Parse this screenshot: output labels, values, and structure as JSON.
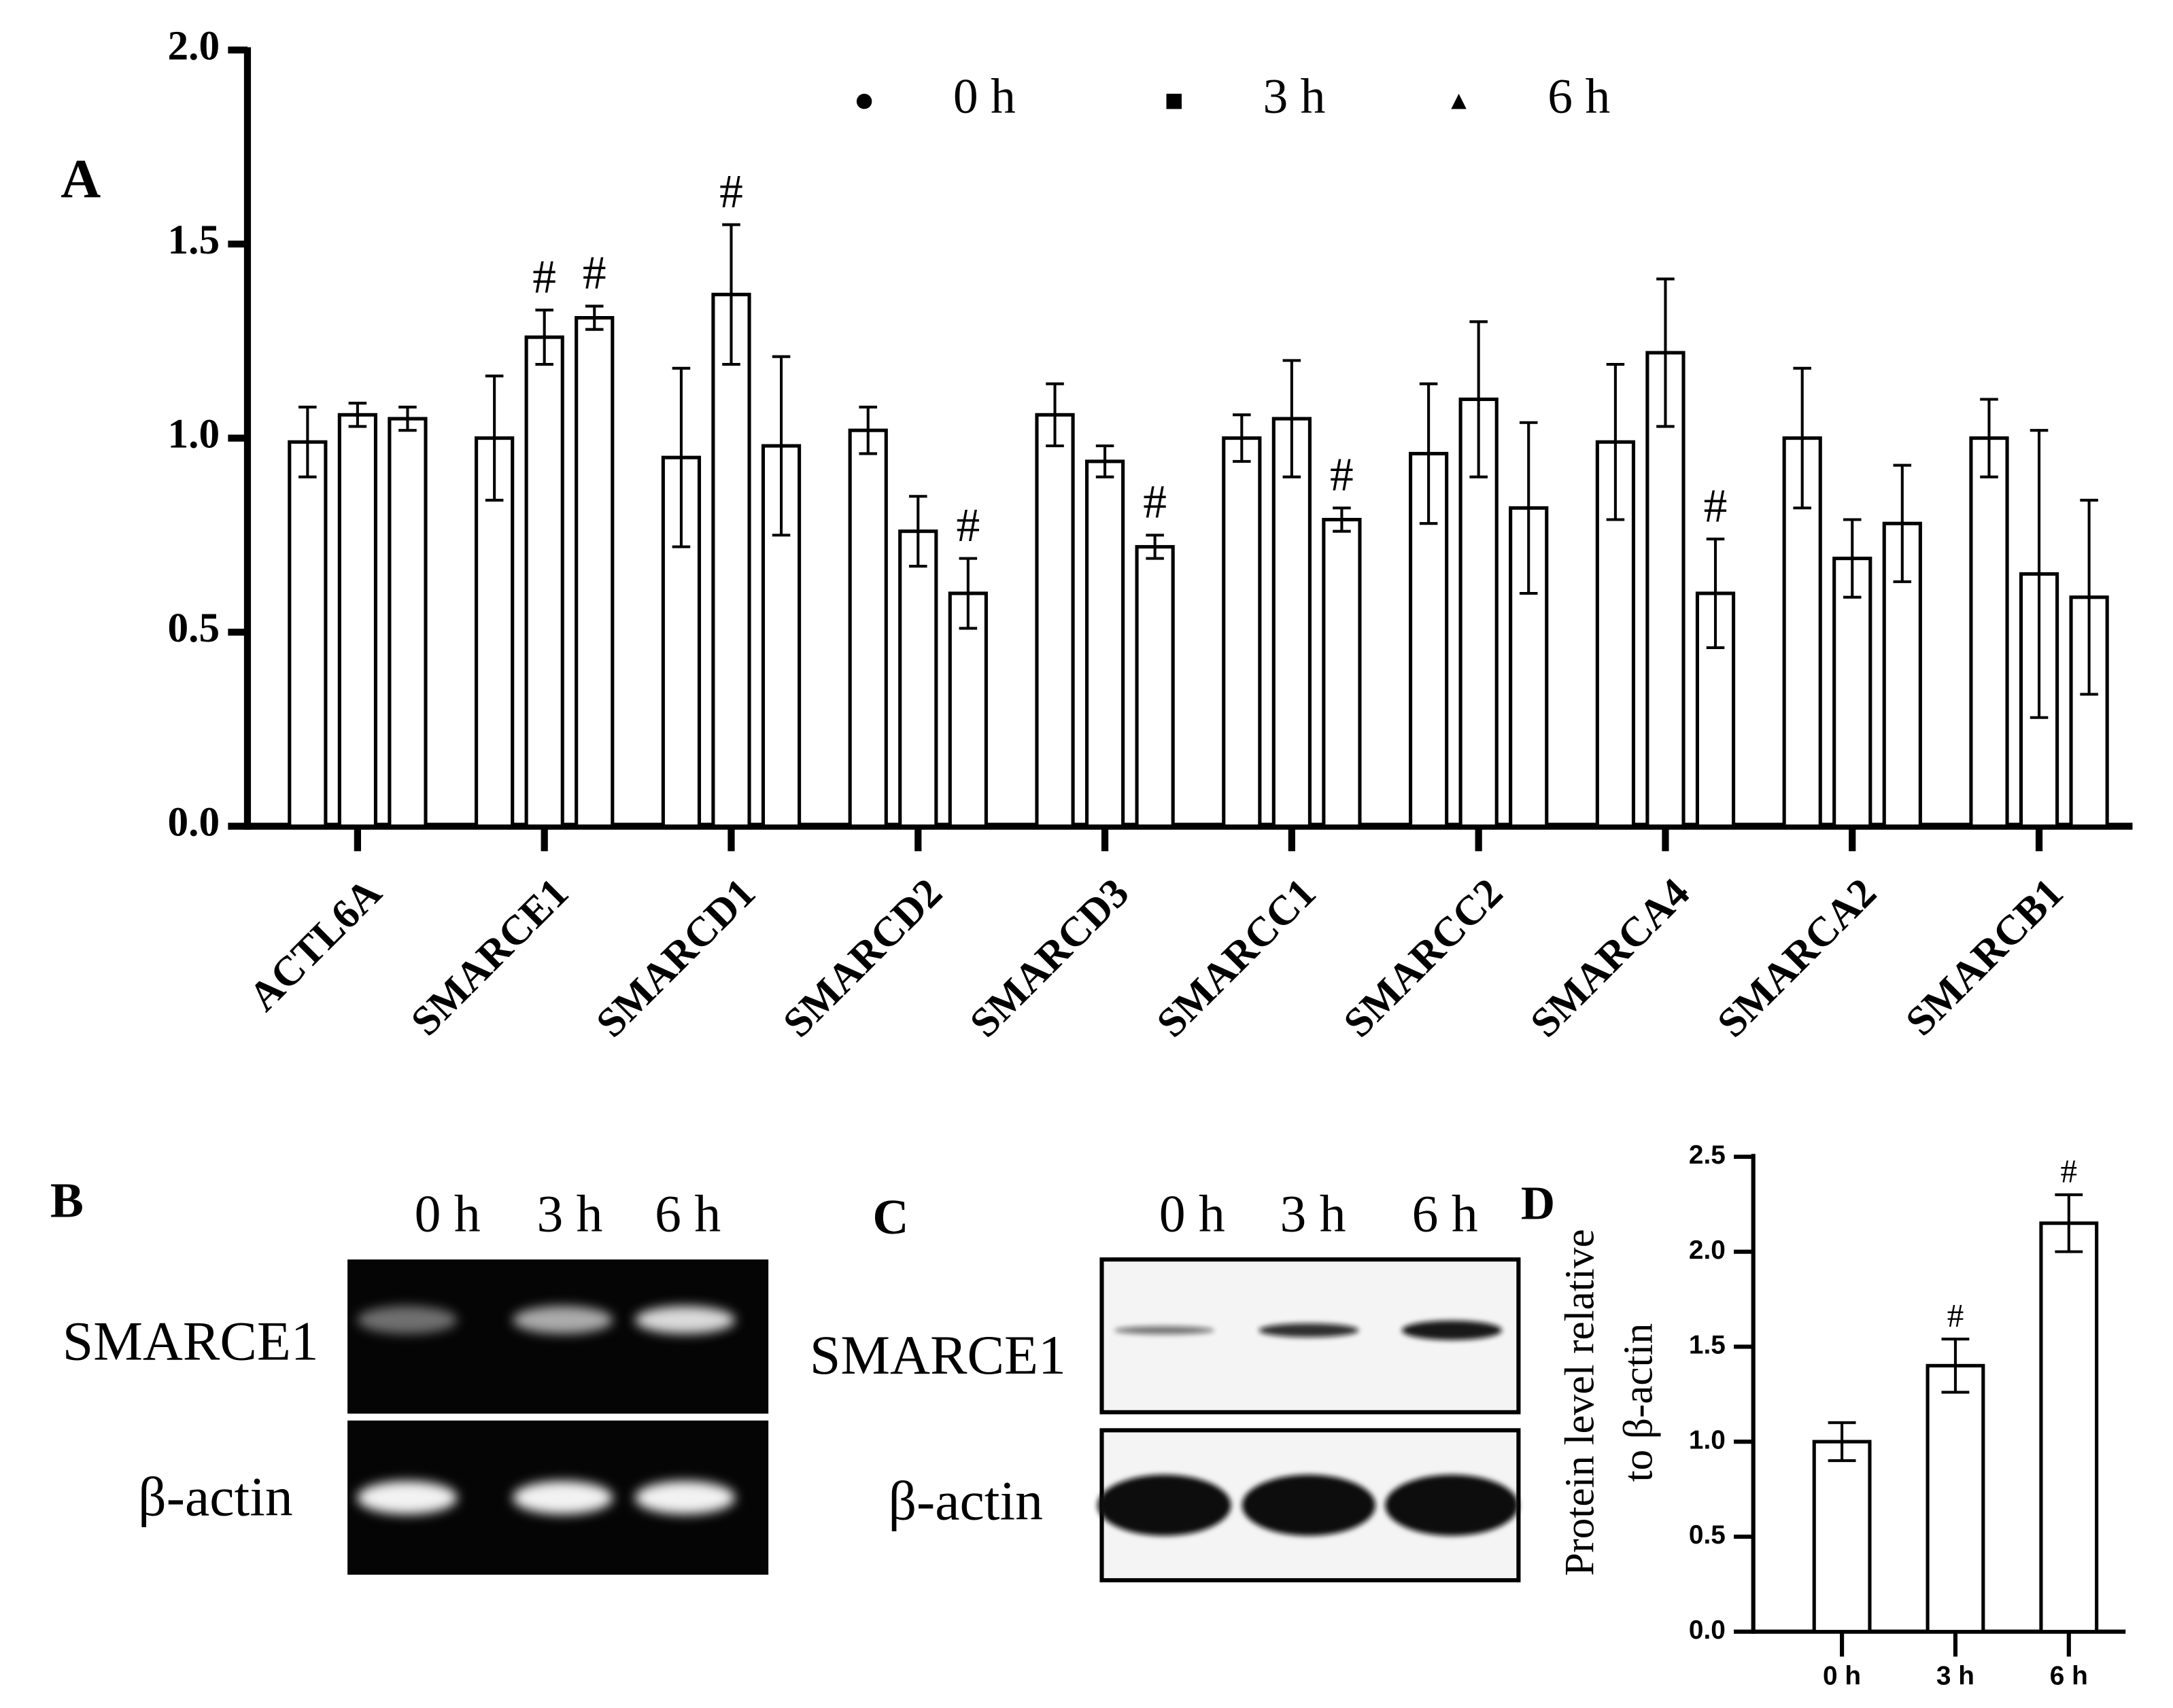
{
  "chart_data": [
    {
      "type": "bar",
      "panel_label": "A",
      "categories": [
        "ACTL6A",
        "SMARCE1",
        "SMARCD1",
        "SMARCD2",
        "SMARCD3",
        "SMARCC1",
        "SMARCC2",
        "SMARCA4",
        "SMARCA2",
        "SMARCB1"
      ],
      "series": [
        {
          "name": "0 h",
          "marker": "circle",
          "color": "#000000",
          "values": [
            0.99,
            1.0,
            0.95,
            1.02,
            1.06,
            1.0,
            0.96,
            0.99,
            1.0,
            1.0
          ],
          "errors": [
            0.09,
            0.16,
            0.23,
            0.06,
            0.08,
            0.06,
            0.18,
            0.2,
            0.18,
            0.1
          ],
          "significance": [
            null,
            null,
            null,
            null,
            null,
            null,
            null,
            null,
            null,
            null
          ]
        },
        {
          "name": "3 h",
          "marker": "square",
          "color": "#000000",
          "values": [
            1.06,
            1.26,
            1.37,
            0.76,
            0.94,
            1.05,
            1.1,
            1.22,
            0.69,
            0.65
          ],
          "errors": [
            0.03,
            0.07,
            0.18,
            0.09,
            0.04,
            0.15,
            0.2,
            0.19,
            0.1,
            0.37
          ],
          "significance": [
            null,
            "#",
            "#",
            null,
            null,
            null,
            null,
            null,
            null,
            null
          ]
        },
        {
          "name": "6 h",
          "marker": "triangle",
          "color": "#000000",
          "values": [
            1.05,
            1.31,
            0.98,
            0.6,
            0.72,
            0.79,
            0.82,
            0.6,
            0.78,
            0.59
          ],
          "errors": [
            0.03,
            0.03,
            0.23,
            0.09,
            0.03,
            0.03,
            0.22,
            0.14,
            0.15,
            0.25
          ],
          "significance": [
            null,
            "#",
            null,
            "#",
            "#",
            "#",
            null,
            "#",
            null,
            null
          ]
        }
      ],
      "ylim": [
        0,
        2
      ],
      "yticks": [
        {
          "value": 0,
          "label": "0.0"
        },
        {
          "value": 0.5,
          "label": "0.5"
        },
        {
          "value": 1,
          "label": "1.0"
        },
        {
          "value": 1.5,
          "label": "1.5"
        },
        {
          "value": 2,
          "label": "2.0"
        }
      ],
      "legend": "top"
    },
    {
      "type": "bar",
      "panel_label": "D",
      "y_label": [
        "Protein level relative",
        "to β-actin"
      ],
      "categories": [
        "0 h",
        "3 h",
        "6 h"
      ],
      "values": [
        1.0,
        1.4,
        2.15
      ],
      "errors": [
        0.1,
        0.14,
        0.15
      ],
      "significance": [
        null,
        "#",
        "#"
      ],
      "ylim": [
        0,
        2.5
      ],
      "yticks": [
        {
          "value": 0,
          "label": "0.0"
        },
        {
          "value": 0.5,
          "label": "0.5"
        },
        {
          "value": 1,
          "label": "1.0"
        },
        {
          "value": 1.5,
          "label": "1.5"
        },
        {
          "value": 2,
          "label": "2.0"
        },
        {
          "value": 2.5,
          "label": "2.5"
        }
      ]
    }
  ],
  "blots": [
    {
      "label": "B",
      "lanes": [
        "0 h",
        "3 h",
        "6 h"
      ],
      "rows": [
        "SMARCE1",
        "β-actin"
      ]
    },
    {
      "label": "C",
      "lanes": [
        "0 h",
        "3 h",
        "6 h"
      ],
      "rows": [
        "SMARCE1",
        "β-actin"
      ]
    }
  ]
}
